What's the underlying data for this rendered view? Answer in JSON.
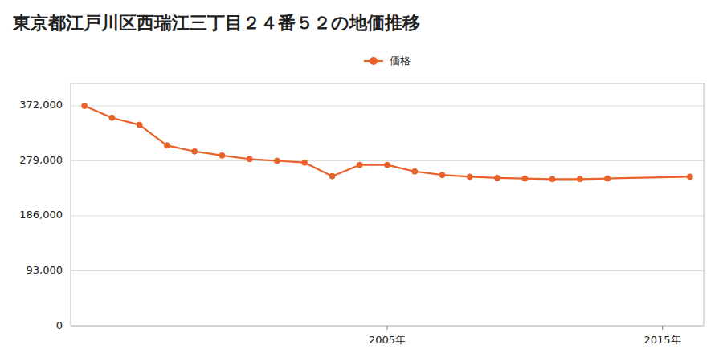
{
  "chart_data": {
    "type": "line",
    "title": "東京都江戸川区西瑞江三丁目２４番５２の地価推移",
    "x": [
      1994,
      1995,
      1996,
      1997,
      1998,
      1999,
      2000,
      2001,
      2002,
      2003,
      2004,
      2005,
      2006,
      2007,
      2008,
      2009,
      2010,
      2011,
      2012,
      2013,
      2016
    ],
    "series": [
      {
        "name": "価格",
        "color": "#e8622a",
        "marker": "circle",
        "values": [
          372000,
          352000,
          340000,
          305000,
          295000,
          288000,
          282000,
          279000,
          276000,
          253000,
          272000,
          272000,
          261000,
          255000,
          252000,
          250000,
          249000,
          248000,
          248000,
          249000,
          252000
        ]
      }
    ],
    "xlim": [
      1993.5,
      2016.5
    ],
    "xticks": [
      {
        "value": 2005,
        "label": "2005年"
      },
      {
        "value": 2015,
        "label": "2015年"
      }
    ],
    "ylim": [
      0,
      410000
    ],
    "yticks": [
      0,
      {
        "value": 93000,
        "label": "93,000"
      },
      {
        "value": 186000,
        "label": "186,000"
      },
      {
        "value": 279000,
        "label": "279,000"
      },
      {
        "value": 372000,
        "label": "372,000"
      }
    ],
    "grid": true,
    "legend": "top"
  }
}
